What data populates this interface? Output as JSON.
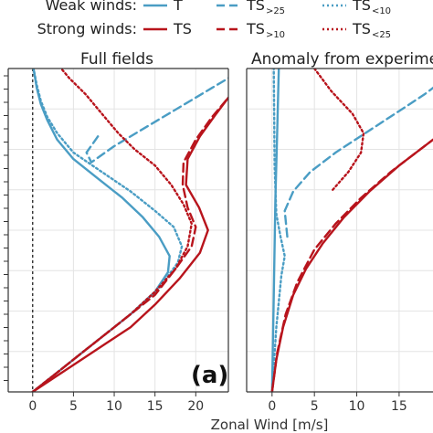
{
  "legend": {
    "weak_label": "Weak winds:",
    "strong_label": "Strong winds:",
    "entries": [
      {
        "text": "T",
        "sub": "",
        "row": "weak",
        "col": 0,
        "color": "#4a9dc4",
        "dash": "solid"
      },
      {
        "text": "TS",
        "sub": ">25",
        "row": "weak",
        "col": 1,
        "color": "#4a9dc4",
        "dash": "dashed"
      },
      {
        "text": "TS",
        "sub": "<10",
        "row": "weak",
        "col": 2,
        "color": "#4a9dc4",
        "dash": "dotted"
      },
      {
        "text": "TS",
        "sub": "",
        "row": "strong",
        "col": 0,
        "color": "#b8141c",
        "dash": "solid"
      },
      {
        "text": "TS",
        "sub": ">10",
        "row": "strong",
        "col": 1,
        "color": "#b8141c",
        "dash": "dashed"
      },
      {
        "text": "TS",
        "sub": "<25",
        "row": "strong",
        "col": 2,
        "color": "#b8141c",
        "dash": "dotted"
      }
    ]
  },
  "panel_letter": "(a)",
  "xlabel": "Zonal Wind [m/s]",
  "chart_data": [
    {
      "type": "line",
      "title": "Full fields",
      "xlabel": "Zonal Wind [m/s]",
      "ylabel": "",
      "xlim": [
        -3,
        24
      ],
      "ylim": [
        0,
        1
      ],
      "xticks": [
        0,
        5,
        10,
        15,
        20
      ],
      "zero_line": true,
      "grid": true,
      "series": [
        {
          "key": "weak-T",
          "color": "#4a9dc4",
          "dash": "solid",
          "points": [
            [
              0,
              0
            ],
            [
              3,
              0.06
            ],
            [
              6,
              0.12
            ],
            [
              9,
              0.18
            ],
            [
              12,
              0.24
            ],
            [
              15,
              0.31
            ],
            [
              16.6,
              0.37
            ],
            [
              16.8,
              0.42
            ],
            [
              15.5,
              0.48
            ],
            [
              13.5,
              0.54
            ],
            [
              11,
              0.6
            ],
            [
              8,
              0.66
            ],
            [
              5,
              0.72
            ],
            [
              3,
              0.78
            ],
            [
              1.8,
              0.84
            ],
            [
              1,
              0.89
            ],
            [
              0.5,
              0.94
            ],
            [
              0.1,
              1
            ]
          ]
        },
        {
          "key": "weak-TS>25",
          "color": "#4a9dc4",
          "dash": "dashed",
          "points": [
            [
              8,
              0.79
            ],
            [
              6.6,
              0.74
            ],
            [
              7.2,
              0.71
            ],
            [
              10,
              0.76
            ],
            [
              14,
              0.82
            ],
            [
              18,
              0.88
            ],
            [
              22,
              0.94
            ],
            [
              26,
              1.0
            ]
          ]
        },
        {
          "key": "weak-TS<10",
          "color": "#4a9dc4",
          "dash": "dotted",
          "points": [
            [
              0,
              0
            ],
            [
              3,
              0.06
            ],
            [
              6,
              0.12
            ],
            [
              9,
              0.18
            ],
            [
              12.5,
              0.25
            ],
            [
              15.5,
              0.32
            ],
            [
              17.8,
              0.4
            ],
            [
              18.3,
              0.45
            ],
            [
              17.3,
              0.51
            ],
            [
              15,
              0.56
            ],
            [
              12,
              0.62
            ],
            [
              8.5,
              0.68
            ],
            [
              5,
              0.74
            ],
            [
              3,
              0.8
            ],
            [
              1.8,
              0.85
            ],
            [
              1,
              0.9
            ],
            [
              0.5,
              0.95
            ],
            [
              0.1,
              1
            ]
          ]
        },
        {
          "key": "strong-TS",
          "color": "#b8141c",
          "dash": "solid",
          "points": [
            [
              0,
              0
            ],
            [
              3,
              0.05
            ],
            [
              6,
              0.1
            ],
            [
              9,
              0.15
            ],
            [
              12,
              0.2
            ],
            [
              15,
              0.27
            ],
            [
              18,
              0.35
            ],
            [
              20.5,
              0.43
            ],
            [
              21.5,
              0.5
            ],
            [
              20.4,
              0.57
            ],
            [
              18.8,
              0.64
            ],
            [
              19,
              0.72
            ],
            [
              20.5,
              0.79
            ],
            [
              22.5,
              0.86
            ],
            [
              24,
              0.91
            ]
          ]
        },
        {
          "key": "strong-TS>10",
          "color": "#b8141c",
          "dash": "dashed",
          "points": [
            [
              0,
              0
            ],
            [
              3,
              0.06
            ],
            [
              6,
              0.12
            ],
            [
              9,
              0.18
            ],
            [
              12,
              0.24
            ],
            [
              15,
              0.3
            ],
            [
              17.5,
              0.38
            ],
            [
              19.5,
              0.45
            ],
            [
              20,
              0.51
            ],
            [
              19,
              0.57
            ],
            [
              18.4,
              0.64
            ],
            [
              18.5,
              0.71
            ],
            [
              20,
              0.78
            ],
            [
              22,
              0.85
            ],
            [
              24,
              0.91
            ]
          ]
        },
        {
          "key": "strong-TS<25",
          "color": "#b8141c",
          "dash": "dotted",
          "points": [
            [
              0,
              0
            ],
            [
              3,
              0.06
            ],
            [
              6,
              0.12
            ],
            [
              9,
              0.18
            ],
            [
              12,
              0.24
            ],
            [
              15,
              0.31
            ],
            [
              17.5,
              0.38
            ],
            [
              19,
              0.45
            ],
            [
              19.5,
              0.52
            ],
            [
              18.5,
              0.58
            ],
            [
              17,
              0.64
            ],
            [
              15,
              0.7
            ],
            [
              12.5,
              0.75
            ],
            [
              10.5,
              0.8
            ],
            [
              8.5,
              0.86
            ],
            [
              6.5,
              0.92
            ],
            [
              4.5,
              0.97
            ],
            [
              3.5,
              1.0
            ]
          ]
        }
      ]
    },
    {
      "type": "line",
      "title": "Anomaly from experime",
      "xlabel": "Zonal Wind [m/s]",
      "ylabel": "",
      "xlim": [
        -3,
        19
      ],
      "ylim": [
        0,
        1
      ],
      "xticks": [
        0,
        5,
        10,
        15
      ],
      "zero_line": false,
      "grid": true,
      "series": [
        {
          "key": "weak-T",
          "color": "#4a9dc4",
          "dash": "solid",
          "points": [
            [
              0,
              0
            ],
            [
              0.2,
              0.3
            ],
            [
              0.4,
              0.6
            ],
            [
              0.6,
              0.8
            ],
            [
              0.8,
              1.0
            ]
          ]
        },
        {
          "key": "weak-TS>25",
          "color": "#4a9dc4",
          "dash": "dashed",
          "points": [
            [
              1.8,
              0.48
            ],
            [
              1.5,
              0.56
            ],
            [
              2.5,
              0.62
            ],
            [
              4.5,
              0.68
            ],
            [
              7.5,
              0.74
            ],
            [
              11,
              0.8
            ],
            [
              14.5,
              0.86
            ],
            [
              18,
              0.92
            ],
            [
              20,
              0.96
            ]
          ]
        },
        {
          "key": "weak-TS<10",
          "color": "#4a9dc4",
          "dash": "dotted",
          "points": [
            [
              0,
              0
            ],
            [
              0.5,
              0.2
            ],
            [
              1.1,
              0.36
            ],
            [
              1.5,
              0.42
            ],
            [
              1,
              0.48
            ],
            [
              0.5,
              0.55
            ],
            [
              0.3,
              0.7
            ],
            [
              0.2,
              1.0
            ]
          ]
        },
        {
          "key": "strong-TS",
          "color": "#b8141c",
          "dash": "solid",
          "points": [
            [
              0,
              0
            ],
            [
              0.5,
              0.1
            ],
            [
              1.3,
              0.2
            ],
            [
              2.5,
              0.3
            ],
            [
              4,
              0.38
            ],
            [
              6,
              0.46
            ],
            [
              8.5,
              0.54
            ],
            [
              11.5,
              0.62
            ],
            [
              15,
              0.7
            ],
            [
              19,
              0.78
            ]
          ]
        },
        {
          "key": "strong-TS>10",
          "color": "#b8141c",
          "dash": "dashed",
          "points": [
            [
              0,
              0
            ],
            [
              0.6,
              0.12
            ],
            [
              1.6,
              0.24
            ],
            [
              3,
              0.34
            ],
            [
              5,
              0.44
            ],
            [
              7.5,
              0.52
            ],
            [
              10.5,
              0.6
            ],
            [
              14,
              0.68
            ],
            [
              18,
              0.76
            ],
            [
              19,
              0.78
            ]
          ]
        },
        {
          "key": "strong-TS<25",
          "color": "#b8141c",
          "dash": "dotted",
          "points": [
            [
              5,
              1.0
            ],
            [
              7,
              0.93
            ],
            [
              9.5,
              0.86
            ],
            [
              10.8,
              0.8
            ],
            [
              10.5,
              0.74
            ],
            [
              9,
              0.68
            ],
            [
              7,
              0.62
            ]
          ]
        }
      ]
    }
  ]
}
